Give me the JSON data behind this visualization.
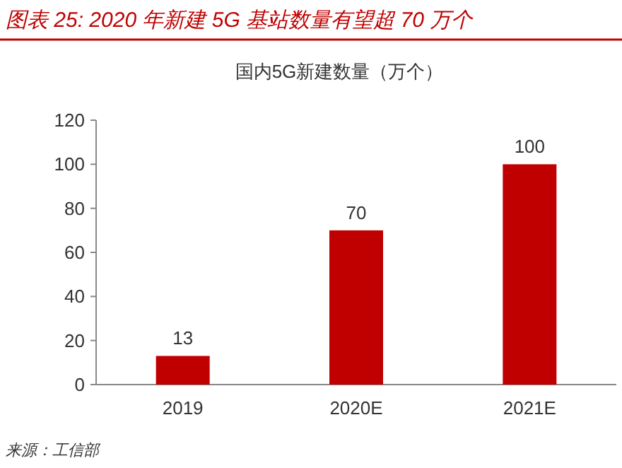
{
  "chart_data": {
    "type": "bar",
    "title": "图表 25: 2020 年新建 5G 基站数量有望超 70 万个",
    "subtitle": "国内5G新建数量（万个）",
    "categories": [
      "2019",
      "2020E",
      "2021E"
    ],
    "values": [
      13,
      70,
      100
    ],
    "color": "#c00000",
    "ylim": [
      0,
      120
    ],
    "yticks": [
      0,
      20,
      40,
      60,
      80,
      100,
      120
    ],
    "data_labels": true,
    "annotations": [
      "来源：工信部"
    ]
  }
}
